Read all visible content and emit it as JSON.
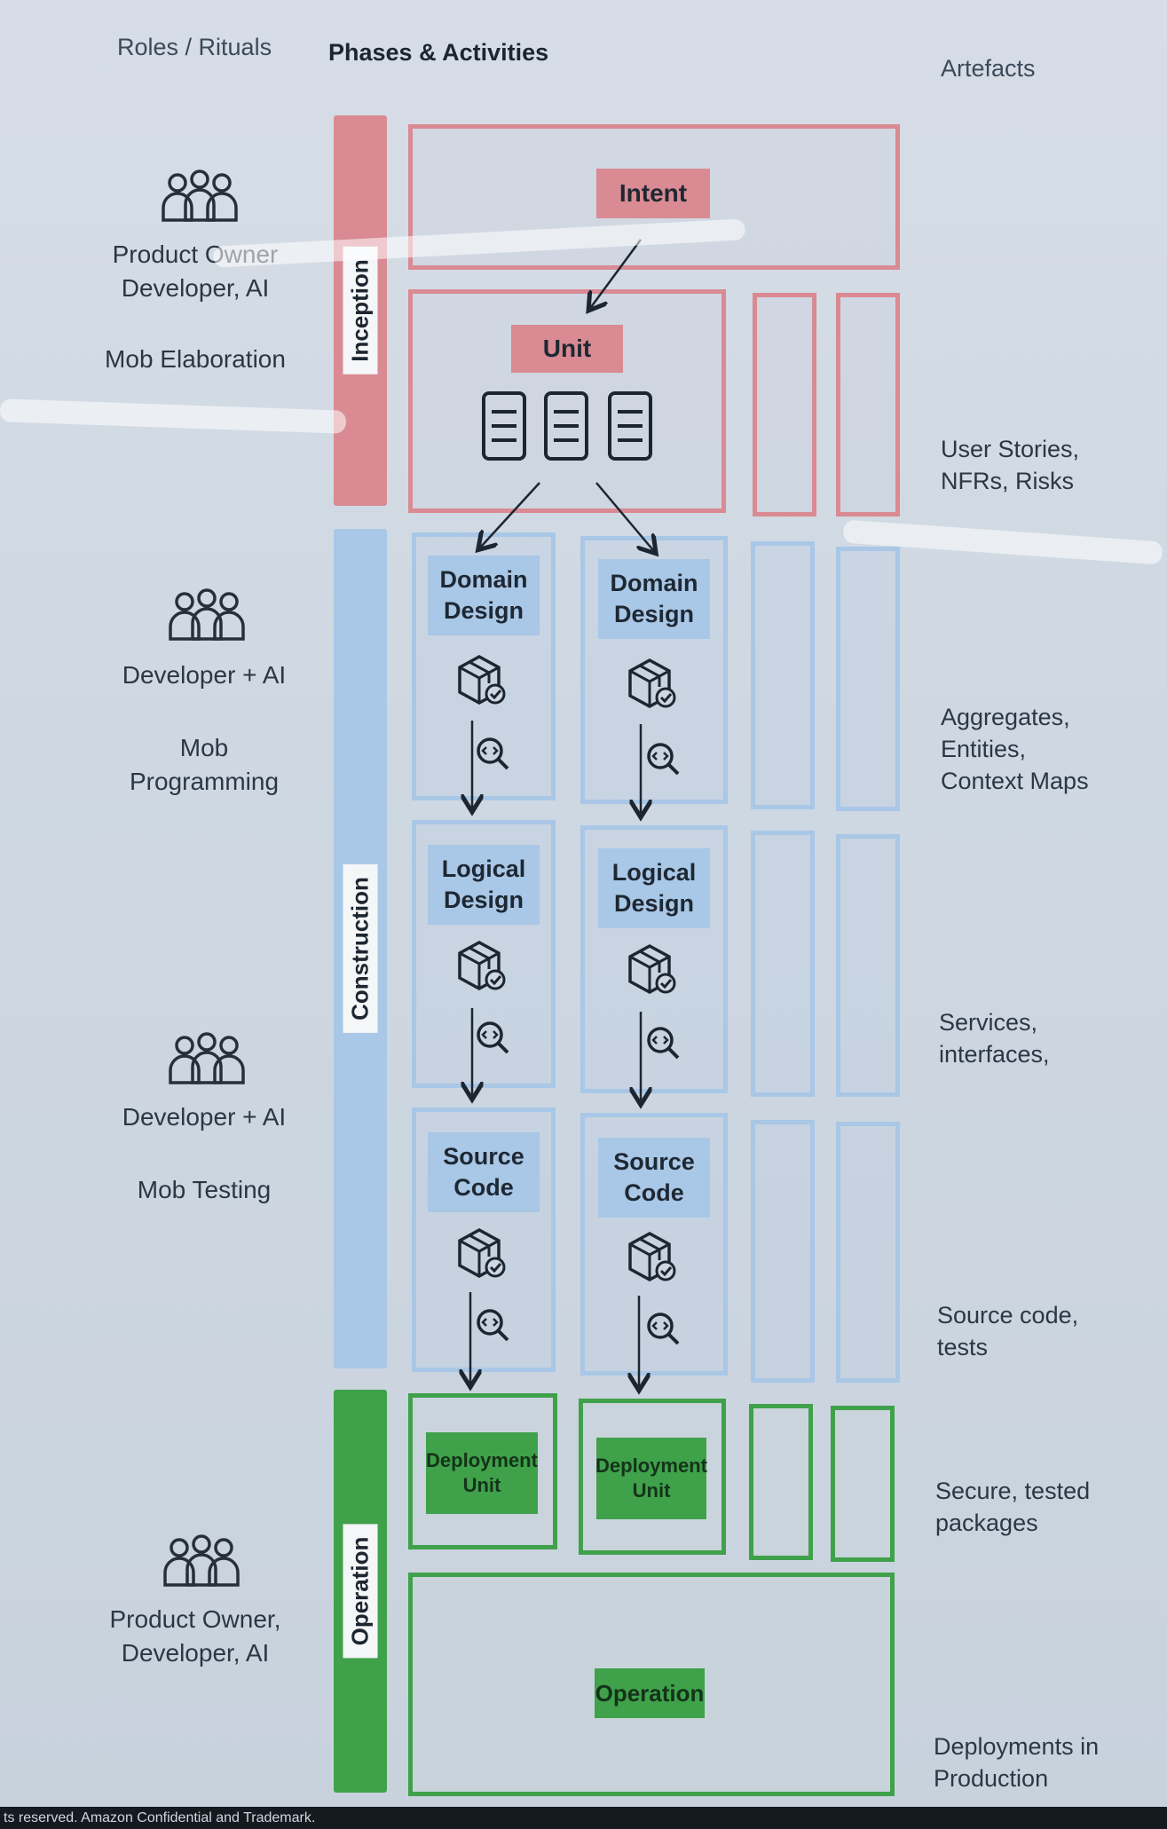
{
  "headers": {
    "roles": "Roles / Rituals",
    "phases": "Phases & Activities",
    "artefacts": "Artefacts"
  },
  "phases": {
    "inception": "Inception",
    "construction": "Construction",
    "operation": "Operation"
  },
  "roles": [
    {
      "people": "Product Owner\nDeveloper, AI",
      "ritual": "Mob Elaboration"
    },
    {
      "people": "Developer + AI",
      "ritual": "Mob\nProgramming"
    },
    {
      "people": "Developer + AI",
      "ritual": "Mob Testing"
    },
    {
      "people": "Product Owner,\nDeveloper, AI",
      "ritual": ""
    }
  ],
  "nodes": {
    "intent": "Intent",
    "unit": "Unit",
    "domain_design": "Domain\nDesign",
    "logical_design": "Logical\nDesign",
    "source_code": "Source\nCode",
    "deployment_unit": "Deployment\nUnit",
    "operation": "Operation"
  },
  "artefacts": {
    "inception": "User Stories,\nNFRs, Risks",
    "domain": "Aggregates,\nEntities,\nContext Maps",
    "logical": "Services,\ninterfaces,",
    "source": "Source code,\ntests",
    "deployment": "Secure, tested\npackages",
    "production": "Deployments in\nProduction"
  },
  "footer": "ts reserved. Amazon Confidential and Trademark.",
  "colors": {
    "inception": "#d98a92",
    "construction": "#a9c7e6",
    "operation": "#3fa14a"
  },
  "icons": [
    "people-icon",
    "document-icon",
    "package-icon",
    "code-search-icon",
    "arrow-icon"
  ]
}
